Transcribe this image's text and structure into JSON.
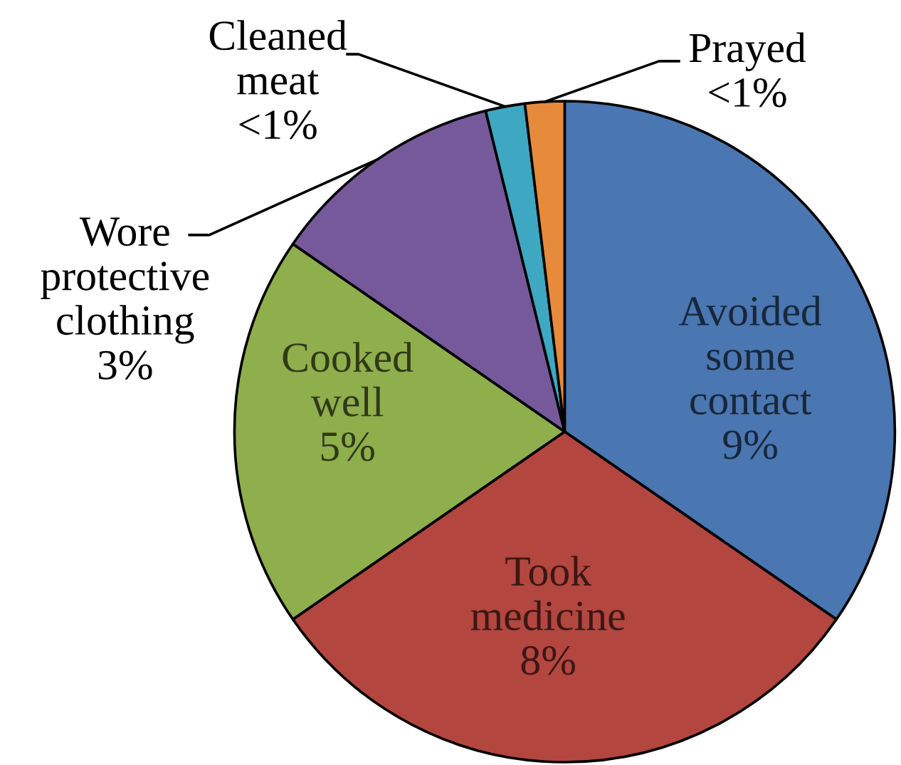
{
  "chart_data": {
    "type": "pie",
    "categories": [
      "Avoided\nsome\ncontact",
      "Took\nmedicine",
      "Cooked\nwell",
      "Wore\nprotective\nclothing",
      "Cleaned\nmeat",
      "Prayed"
    ],
    "values": [
      9,
      8,
      5,
      3,
      0.5,
      0.5
    ],
    "colors": [
      "#4a76b1",
      "#b3463f",
      "#8fae4c",
      "#76599b",
      "#3ea7c1",
      "#e68a3b"
    ],
    "value_labels": [
      "9%",
      "8%",
      "5%",
      "3%",
      "<1%",
      "<1%"
    ]
  }
}
